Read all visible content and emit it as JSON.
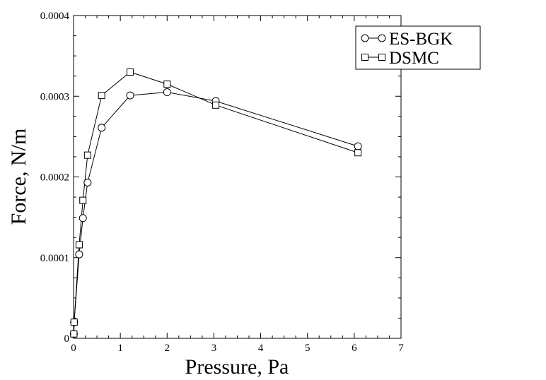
{
  "chart_data": {
    "type": "line",
    "xlabel": "Pressure, Pa",
    "ylabel": "Force, N/m",
    "xlim": [
      0,
      7
    ],
    "ylim": [
      0,
      0.0004
    ],
    "x_ticks": [
      "0",
      "1",
      "2",
      "3",
      "4",
      "5",
      "6",
      "7"
    ],
    "y_ticks": [
      "0",
      "0.0001",
      "0.0002",
      "0.0003",
      "0.0004"
    ],
    "grid": false,
    "legend_position": "top-right",
    "series": [
      {
        "name": "ES-BGK",
        "marker": "circle",
        "x": [
          0.006,
          0.012,
          0.12,
          0.2,
          0.3,
          0.6,
          1.21,
          2.0,
          3.04,
          6.08
        ],
        "y": [
          5.5e-06,
          2e-05,
          0.000104,
          0.000149,
          0.000193,
          0.000261,
          0.000301,
          0.000305,
          0.000294,
          0.000238
        ]
      },
      {
        "name": "DSMC",
        "marker": "square",
        "x": [
          0.006,
          0.012,
          0.12,
          0.2,
          0.3,
          0.6,
          1.21,
          2.0,
          3.04,
          6.08
        ],
        "y": [
          5.5e-06,
          2e-05,
          0.000116,
          0.000171,
          0.000227,
          0.000301,
          0.00033,
          0.000315,
          0.000289,
          0.00023
        ]
      }
    ]
  }
}
